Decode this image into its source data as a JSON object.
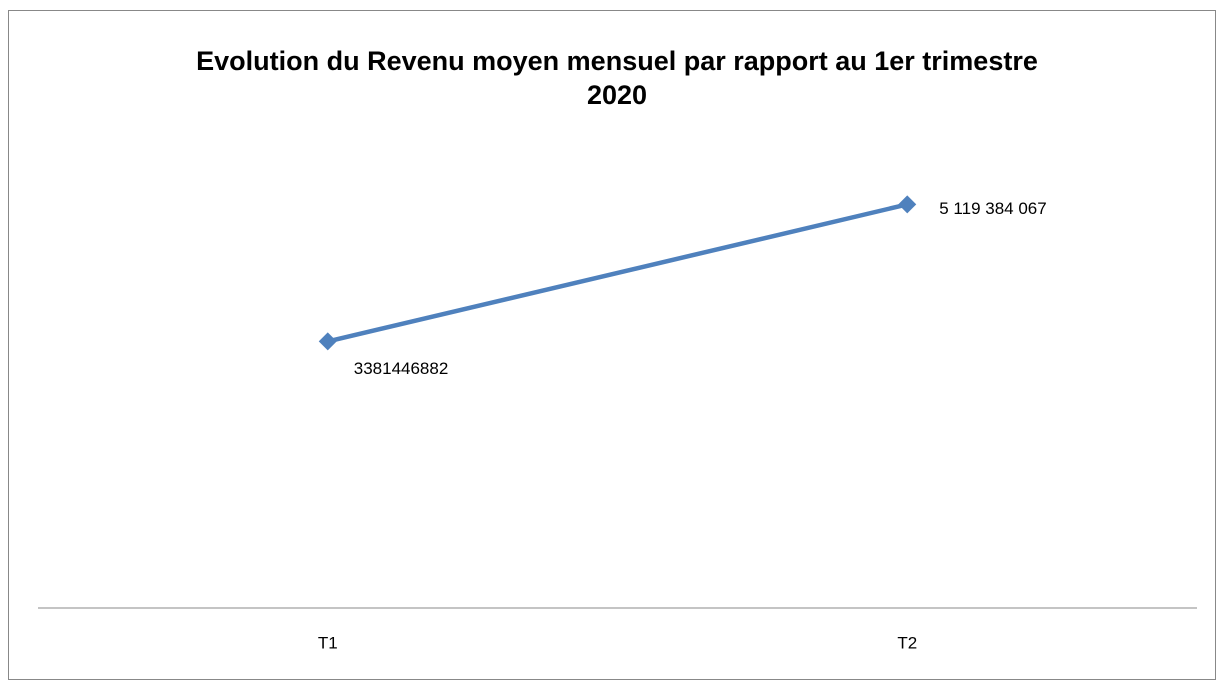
{
  "chart_data": {
    "type": "line",
    "title": "Evolution du Revenu moyen mensuel par rapport au 1er trimestre 2020",
    "categories": [
      "T1",
      "T2"
    ],
    "series": [
      {
        "name": "Revenu moyen mensuel",
        "color": "#4f81bd",
        "values": [
          3381446882,
          5119384067
        ],
        "value_labels": [
          "3381446882",
          "5 119 384 067"
        ]
      }
    ],
    "ylim": [
      0,
      6000000000
    ]
  }
}
